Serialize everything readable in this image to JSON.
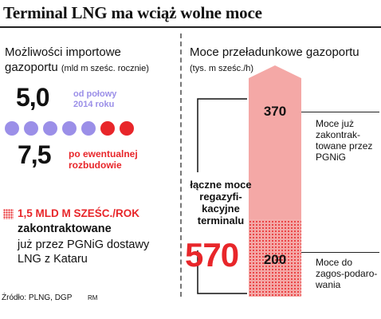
{
  "title": "Terminal LNG ma wciąż wolne moce",
  "left": {
    "heading_main": "Możliwości importowe gazoportu",
    "heading_unit": "(mld m sześc. rocznie)",
    "value_current": "5,0",
    "note_current": "od połowy 2014 roku",
    "value_future": "7,5",
    "note_future": "po ewentualnej rozbudowie",
    "contract_amount": "1,5 MLD M SZEŚC./ROK",
    "contract_bold": "zakontraktowane",
    "contract_text": "już przez PGNiG dostawy LNG z Kataru",
    "colors": {
      "current": "#9b8fe8",
      "expansion": "#e8262a"
    }
  },
  "chart_data": [
    {
      "type": "icon_array",
      "unit": "mld m sześc. rocznie",
      "dots_total": 7,
      "dots_current": 5,
      "dots_expansion": 2,
      "values": {
        "current": 5.0,
        "after_expansion": 7.5
      }
    },
    {
      "type": "bar",
      "stacked": true,
      "title": "Moce przeładunkowe gazoportu",
      "unit": "tys. m sześc./h",
      "total": 570,
      "total_label": "łączne moce regazyfikacyjne terminalu",
      "series": [
        {
          "name": "Moce do zagospodarowania",
          "value": 200,
          "color": "#e8262a",
          "pattern": "dotted"
        },
        {
          "name": "Moce już zakontraktowane przez PGNiG",
          "value": 370,
          "color": "#f4a8a6"
        }
      ]
    }
  ],
  "right": {
    "heading_main": "Moce przeładunkowe gazoportu",
    "heading_unit": "(tys. m sześc./h)",
    "total_label": "łączne moce regazyfi-kacyjne terminalu",
    "total_value": "570",
    "upper_value": "370",
    "lower_value": "200",
    "upper_note": "Moce już zakontrak-towane przez PGNiG",
    "lower_note": "Moce do zagos-podaro-wania"
  },
  "source": "Źródło: PLNG, DGP",
  "author": "RM"
}
